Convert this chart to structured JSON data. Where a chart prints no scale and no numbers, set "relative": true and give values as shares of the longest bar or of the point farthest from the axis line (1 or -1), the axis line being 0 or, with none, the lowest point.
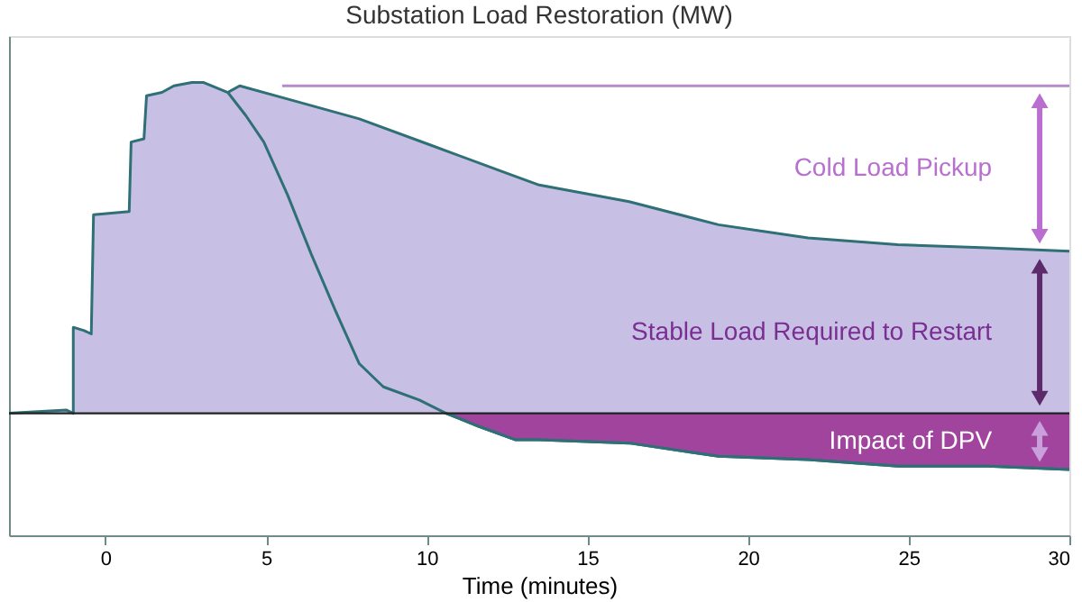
{
  "chart_data": {
    "type": "area",
    "title": "Substation Load Restoration (MW)",
    "xlabel": "Time (minutes)",
    "relative": true,
    "xlim": [
      -3,
      30
    ],
    "xticks": [
      0,
      5,
      10,
      15,
      20,
      25,
      30
    ],
    "grid": false,
    "series": [
      {
        "color": "#c8c0e4",
        "x": [
          -3,
          -1.22,
          -1.0,
          -1.0,
          -0.66,
          -0.44,
          -0.37,
          0.74,
          0.8,
          1.2,
          1.28,
          1.76,
          2.13,
          2.69,
          3.06,
          3.81,
          4.18,
          5.67,
          7.9,
          10.14,
          12.37,
          13.5,
          16.3,
          19.08,
          21.87,
          24.66,
          27.46,
          30
        ],
        "values": [
          0.0,
          0.01,
          0.0,
          0.26,
          0.25,
          0.24,
          0.6,
          0.61,
          0.82,
          0.83,
          0.96,
          0.97,
          0.99,
          1.0,
          1.0,
          0.97,
          0.99,
          0.95,
          0.89,
          0.81,
          0.73,
          0.69,
          0.64,
          0.57,
          0.53,
          0.51,
          0.5,
          0.49
        ]
      },
      {
        "color": "#a0449e",
        "x": [
          10.6,
          11.63,
          12.75,
          13.5,
          16.3,
          19.08,
          21.87,
          24.66,
          27.46,
          30
        ],
        "values": [
          0.0,
          -0.04,
          -0.08,
          -0.08,
          -0.09,
          -0.13,
          -0.14,
          -0.16,
          -0.16,
          -0.17
        ]
      },
      {
        "type": "line",
        "color": "#2f6f76",
        "x": [
          3.81,
          4.37,
          4.93,
          5.67,
          6.41,
          7.16,
          7.9,
          8.65,
          9.77,
          10.6,
          11.63,
          12.75,
          13.5,
          16.3,
          19.08,
          21.87,
          24.66,
          27.46,
          30
        ],
        "values": [
          0.97,
          0.9,
          0.82,
          0.66,
          0.48,
          0.31,
          0.15,
          0.08,
          0.04,
          0.0,
          -0.04,
          -0.08,
          -0.08,
          -0.09,
          -0.13,
          -0.14,
          -0.16,
          -0.16,
          -0.17
        ]
      },
      {
        "type": "line",
        "color": "#b58cc8",
        "x": [
          5.5,
          30
        ],
        "values": [
          0.99,
          0.99
        ]
      }
    ],
    "annotations": [
      "Cold Load Pickup",
      "Stable Load Required to Restart",
      "Impact of DPV"
    ]
  }
}
